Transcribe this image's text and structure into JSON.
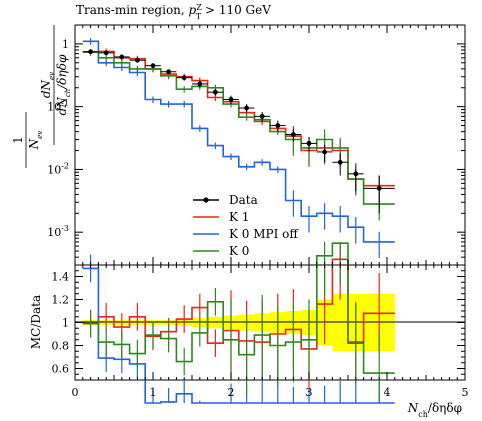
{
  "chart_data": {
    "type": "line",
    "title": "Trans-min region, p_T^Z > 110 GeV",
    "xlabel": "N_ch / δη δφ",
    "ylabel_main": "1/N_ev dN_ev / dN_ch/δηδφ",
    "ylabel_ratio": "MC/Data",
    "x_ticks": [
      "0",
      "1",
      "2",
      "3",
      "4",
      "5"
    ],
    "xlim": [
      0,
      5
    ],
    "main_ylim": [
      0.0003,
      2.0
    ],
    "main_ylog": true,
    "main_y_ticks": [
      {
        "value": 1,
        "label": "1"
      },
      {
        "value": 0.1,
        "label": "10^-1"
      },
      {
        "value": 0.01,
        "label": "10^-2"
      },
      {
        "value": 0.001,
        "label": "10^-3"
      }
    ],
    "ratio_ylim": [
      0.5,
      1.5
    ],
    "ratio_y_ticks": [
      "0.6",
      "0.8",
      "1",
      "1.2",
      "1.4"
    ],
    "bin_edges": [
      0.1,
      0.3,
      0.5,
      0.7,
      0.9,
      1.1,
      1.3,
      1.5,
      1.7,
      1.9,
      2.1,
      2.3,
      2.5,
      2.7,
      2.9,
      3.1,
      3.3,
      3.5,
      3.7,
      4.1
    ],
    "legend": [
      {
        "label": "Data",
        "color": "#000000"
      },
      {
        "label": "K 1",
        "color": "#e8261c"
      },
      {
        "label": "K 0 MPI off",
        "color": "#2362e0"
      },
      {
        "label": "K 0",
        "color": "#2a8a1e"
      }
    ],
    "data": {
      "x": [
        0.2,
        0.4,
        0.6,
        0.8,
        1.0,
        1.2,
        1.4,
        1.6,
        1.8,
        2.0,
        2.2,
        2.4,
        2.6,
        2.8,
        3.0,
        3.2,
        3.4,
        3.6,
        3.9
      ],
      "y": [
        0.75,
        0.72,
        0.62,
        0.55,
        0.45,
        0.36,
        0.29,
        0.23,
        0.17,
        0.13,
        0.095,
        0.07,
        0.05,
        0.036,
        0.026,
        0.019,
        0.013,
        0.0085,
        0.005
      ],
      "yerr_low": [
        0.06,
        0.06,
        0.05,
        0.05,
        0.04,
        0.03,
        0.03,
        0.03,
        0.02,
        0.02,
        0.015,
        0.012,
        0.01,
        0.008,
        0.007,
        0.006,
        0.005,
        0.004,
        0.003
      ],
      "yerr_high": [
        0.06,
        0.06,
        0.05,
        0.05,
        0.04,
        0.03,
        0.03,
        0.03,
        0.02,
        0.02,
        0.015,
        0.012,
        0.01,
        0.008,
        0.007,
        0.006,
        0.005,
        0.004,
        0.003
      ]
    },
    "series": [
      {
        "name": "K 1",
        "color": "#e8261c",
        "values": [
          0.74,
          0.76,
          0.6,
          0.58,
          0.4,
          0.33,
          0.3,
          0.26,
          0.14,
          0.12,
          0.08,
          0.058,
          0.045,
          0.034,
          0.02,
          0.022,
          0.02,
          0.007,
          0.0055
        ],
        "ratio": [
          0.99,
          1.05,
          0.96,
          1.05,
          0.88,
          0.92,
          1.03,
          1.13,
          0.82,
          0.93,
          0.84,
          0.83,
          0.9,
          0.94,
          0.77,
          1.16,
          1.55,
          0.83,
          1.08
        ]
      },
      {
        "name": "K 0 MPI off",
        "color": "#2362e0",
        "values": [
          1.1,
          0.5,
          0.42,
          0.35,
          0.13,
          0.11,
          0.11,
          0.045,
          0.024,
          0.016,
          0.011,
          0.013,
          0.01,
          0.0032,
          0.0018,
          0.002,
          0.0018,
          0.0012,
          0.0007
        ],
        "ratio": [
          1.47,
          0.69,
          0.68,
          0.64,
          0.29,
          0.31,
          0.38,
          0.2,
          0.14,
          0.12,
          0.12,
          0.19,
          0.2,
          0.09,
          0.07,
          0.1,
          0.14,
          0.14,
          0.14
        ]
      },
      {
        "name": "K 0",
        "color": "#2a8a1e",
        "values": [
          0.74,
          0.6,
          0.5,
          0.4,
          0.4,
          0.31,
          0.19,
          0.21,
          0.2,
          0.11,
          0.068,
          0.062,
          0.04,
          0.03,
          0.022,
          0.03,
          0.022,
          0.007,
          0.0028
        ],
        "ratio": [
          0.99,
          0.83,
          0.81,
          0.73,
          0.89,
          0.86,
          0.66,
          0.91,
          1.18,
          0.85,
          0.72,
          0.89,
          0.8,
          0.83,
          0.85,
          1.58,
          1.69,
          0.82,
          0.56
        ]
      }
    ],
    "ratio_band": {
      "color": "#ffff00",
      "half_width": [
        0.02,
        0.02,
        0.02,
        0.02,
        0.02,
        0.02,
        0.03,
        0.04,
        0.05,
        0.06,
        0.07,
        0.08,
        0.09,
        0.1,
        0.11,
        0.2,
        0.25,
        0.25,
        0.25
      ]
    },
    "grid": false,
    "legend_position": "bottom-center"
  }
}
